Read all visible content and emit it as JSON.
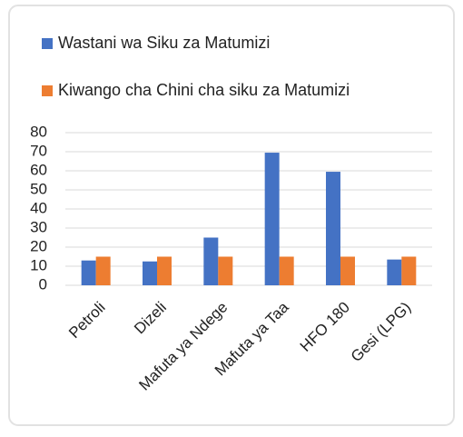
{
  "chart_data": {
    "type": "bar",
    "categories": [
      "Petroli",
      "Dizeli",
      "Mafuta ya Ndege",
      "Mafuta ya Taa",
      "HFO 180",
      "Gesi (LPG)"
    ],
    "series": [
      {
        "name": "Wastani wa Siku za Matumizi",
        "color": "#4472c4",
        "values": [
          13,
          12.5,
          25,
          69.5,
          59.5,
          13.5
        ]
      },
      {
        "name": "Kiwango cha Chini cha siku za Matumizi",
        "color": "#ed7d31",
        "values": [
          15,
          15,
          15,
          15,
          15,
          15
        ]
      }
    ],
    "ylim": [
      0,
      80
    ],
    "yticks": [
      0,
      10,
      20,
      30,
      40,
      50,
      60,
      70,
      80
    ],
    "grid": true,
    "legend": "top"
  }
}
